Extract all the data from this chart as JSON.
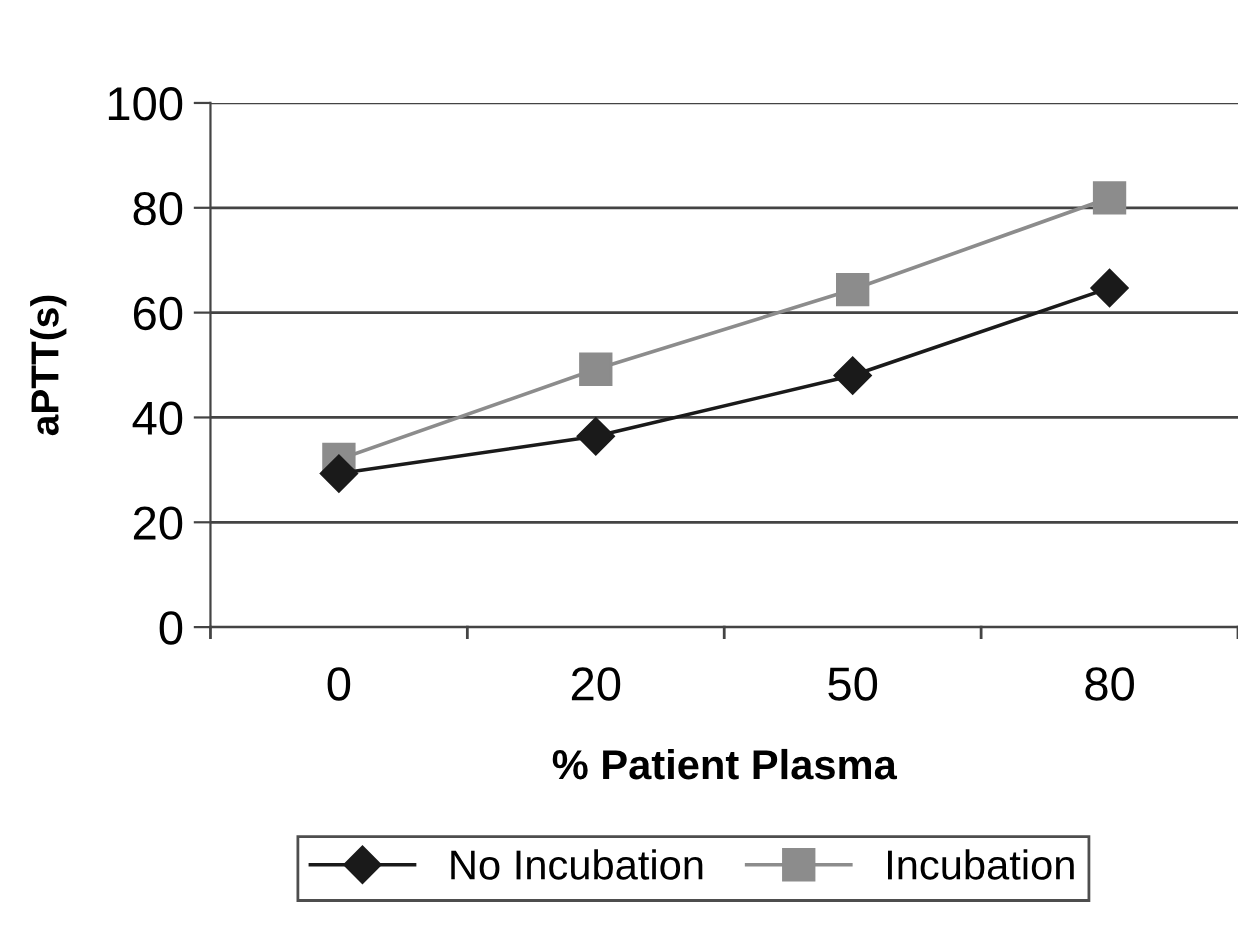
{
  "chart_data": {
    "type": "line",
    "xlabel": "% Patient Plasma",
    "ylabel": "aPTT(s)",
    "categories": [
      "0",
      "20",
      "50",
      "80"
    ],
    "series": [
      {
        "name": "No Incubation",
        "color": "#1a1a1a",
        "marker": "diamond",
        "values": [
          29.3,
          36.4,
          48,
          64.7
        ]
      },
      {
        "name": "Incubation",
        "color": "#8c8c8c",
        "marker": "square",
        "values": [
          32,
          49.2,
          64.4,
          81.9
        ]
      }
    ],
    "ylim": [
      0,
      100
    ],
    "yticks": [
      0,
      20,
      40,
      60,
      80,
      100
    ],
    "grid": "y",
    "legend": "bottom",
    "line_style": "solid"
  }
}
